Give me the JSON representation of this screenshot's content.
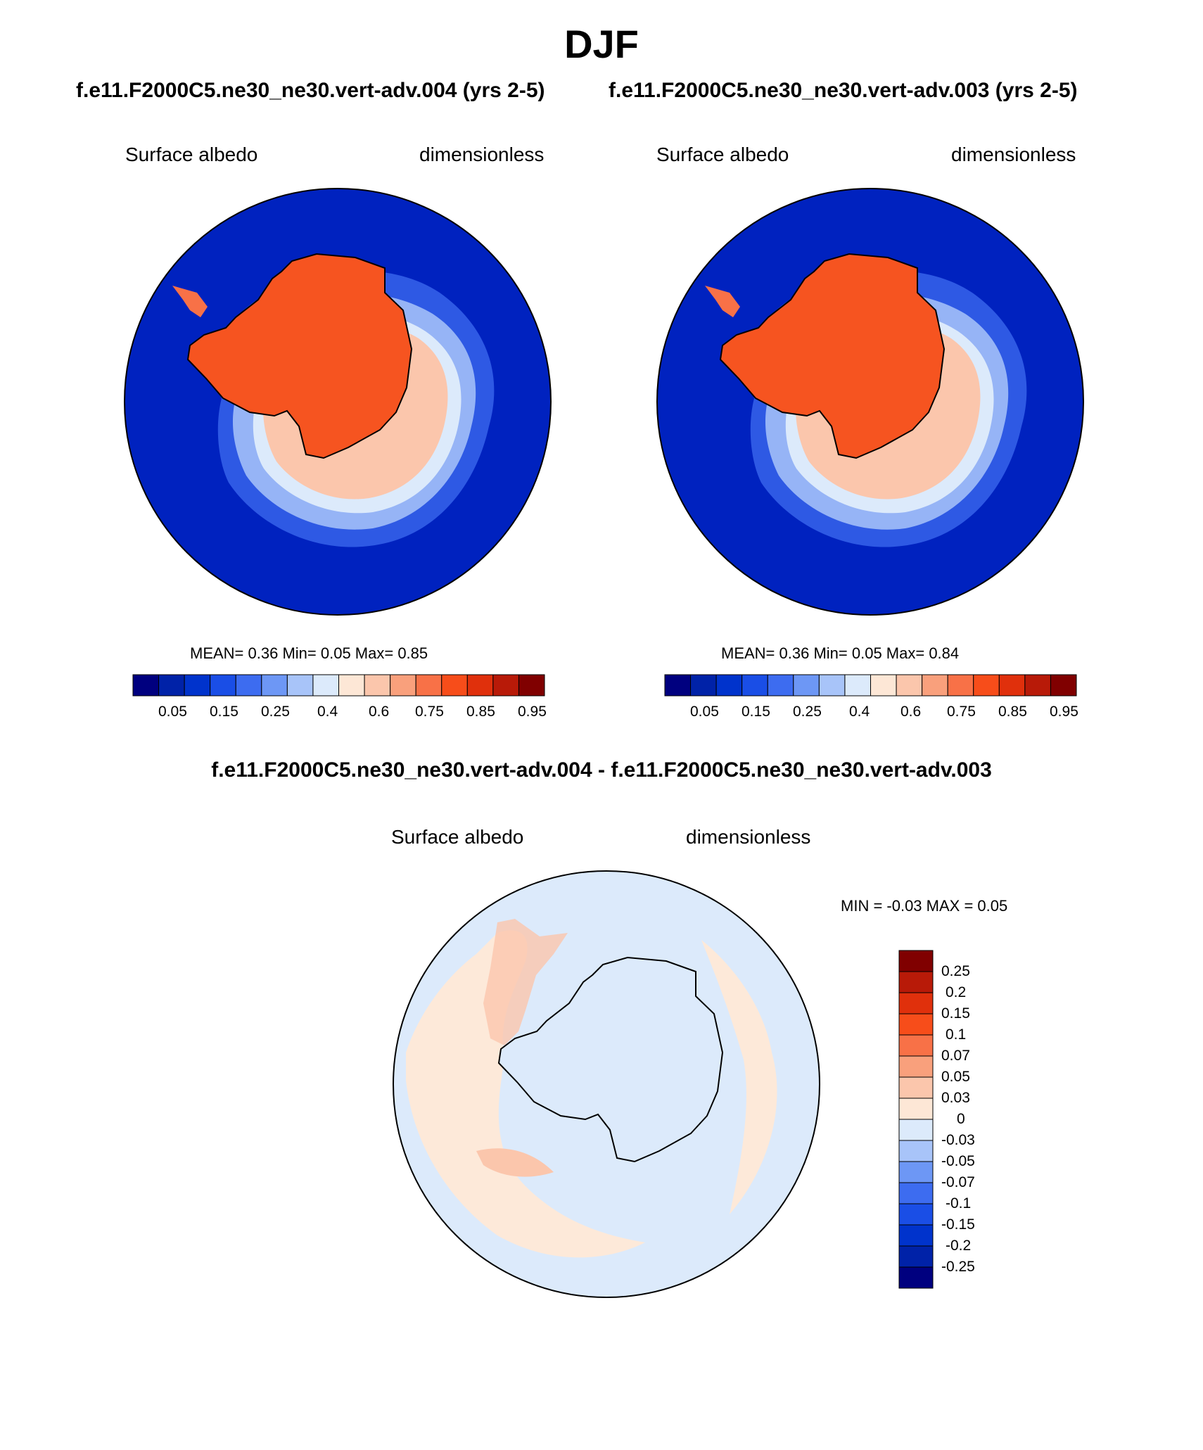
{
  "season": "DJF",
  "panels": [
    {
      "case_title": "f.e11.F2000C5.ne30_ne30.vert-adv.004 (yrs 2-5)",
      "left_label": "Surface albedo",
      "right_label": "dimensionless",
      "stats": "MEAN=   0.36  Min=   0.05  Max=   0.85",
      "colorbar_ticks": [
        "0.05",
        "0.15",
        "0.25",
        "0.4",
        "0.6",
        "0.75",
        "0.85",
        "0.95"
      ]
    },
    {
      "case_title": "f.e11.F2000C5.ne30_ne30.vert-adv.003 (yrs 2-5)",
      "left_label": "Surface albedo",
      "right_label": "dimensionless",
      "stats": "MEAN=   0.36  Min=   0.05  Max=   0.84",
      "colorbar_ticks": [
        "0.05",
        "0.15",
        "0.25",
        "0.4",
        "0.6",
        "0.75",
        "0.85",
        "0.95"
      ]
    }
  ],
  "difference": {
    "title": "f.e11.F2000C5.ne30_ne30.vert-adv.004 - f.e11.F2000C5.ne30_ne30.vert-adv.003",
    "left_label": "Surface albedo",
    "right_label": "dimensionless",
    "stats": "MIN =  -0.03 MAX =   0.05",
    "colorbar_ticks": [
      "0.25",
      "0.2",
      "0.15",
      "0.1",
      "0.07",
      "0.05",
      "0.03",
      "0",
      "-0.03",
      "-0.05",
      "-0.07",
      "-0.1",
      "-0.15",
      "-0.2",
      "-0.25"
    ]
  },
  "colors": {
    "abs_scale": [
      "#00007f",
      "#0022a8",
      "#0033cc",
      "#1a4ee6",
      "#3d6cf0",
      "#6d97f5",
      "#a8c4f9",
      "#dceafb",
      "#fde7d6",
      "#fbc6ac",
      "#f9a07c",
      "#f87147",
      "#f74d1a",
      "#e0300c",
      "#b81a08",
      "#800000"
    ],
    "diff_scale": [
      "#800000",
      "#b81a08",
      "#e0300c",
      "#f74d1a",
      "#f87147",
      "#f9a07c",
      "#fbc6ac",
      "#fde7d6",
      "#dceafb",
      "#a8c4f9",
      "#6d97f5",
      "#3d6cf0",
      "#1a4ee6",
      "#0033cc",
      "#0022a8",
      "#00007f"
    ],
    "ocean": "#0022bf",
    "land_ice": "#f65420",
    "diff_positive": "#fde9d9",
    "diff_negative": "#dceafb",
    "coast": "#000000"
  }
}
